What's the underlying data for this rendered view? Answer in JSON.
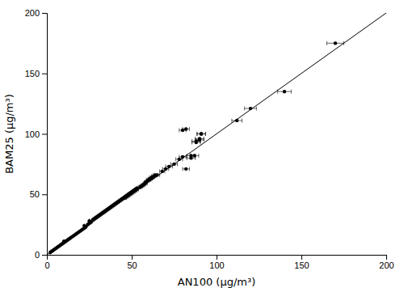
{
  "chart_data": {
    "type": "scatter",
    "xlabel": "AN100 (μg/m³)",
    "ylabel": "BAM25 (μg/m³)",
    "xlim": [
      0,
      200
    ],
    "ylim": [
      0,
      200
    ],
    "xticks": [
      0,
      50,
      100,
      150,
      200
    ],
    "yticks": [
      0,
      50,
      100,
      150,
      200
    ],
    "grid": false,
    "series": [
      {
        "type": "line",
        "x": [
          0,
          200
        ],
        "values": [
          0,
          200
        ],
        "color": "#000000",
        "line_style": "solid"
      },
      {
        "type": "scatter",
        "color": "#000000",
        "marker": "circle",
        "x": [
          2,
          3,
          4,
          5,
          6,
          7,
          8,
          9,
          10,
          10,
          11,
          12,
          13,
          14,
          15,
          16,
          17,
          18,
          19,
          20,
          21,
          22,
          22,
          23,
          24,
          25,
          25,
          26,
          27,
          28,
          29,
          30,
          31,
          32,
          33,
          34,
          35,
          36,
          37,
          38,
          39,
          40,
          41,
          42,
          43,
          44,
          45,
          46,
          47,
          48,
          49,
          50,
          51,
          52,
          53,
          55,
          56,
          57,
          58,
          59,
          60,
          61,
          62,
          63,
          46,
          47,
          48,
          49,
          50,
          51,
          52,
          53,
          55,
          56,
          57,
          58,
          60,
          61,
          62,
          63,
          64,
          65,
          68,
          70,
          72,
          75,
          78,
          80,
          82,
          85,
          87,
          88,
          90,
          91,
          80,
          82,
          85,
          88,
          90,
          91,
          112,
          120,
          140,
          170
        ],
        "values": [
          2,
          3,
          4,
          5,
          6,
          7,
          8,
          9,
          10,
          11,
          11,
          12,
          13,
          14,
          15,
          16,
          17,
          18,
          19,
          20,
          21,
          22,
          24,
          23,
          25,
          26,
          28,
          27,
          29,
          30,
          31,
          32,
          33,
          34,
          35,
          36,
          37,
          38,
          39,
          40,
          41,
          42,
          43,
          44,
          45,
          46,
          47,
          48,
          49,
          50,
          51,
          52,
          53,
          54,
          55,
          56,
          57,
          58,
          60,
          61,
          62,
          63,
          64,
          65,
          47,
          48,
          49,
          50,
          51,
          52,
          53,
          54,
          56,
          57,
          58,
          59,
          62,
          63,
          64,
          65,
          66,
          66,
          69,
          71,
          73,
          75,
          79,
          81,
          71,
          80,
          82,
          94,
          96,
          100,
          103,
          104,
          82,
          93,
          95,
          100,
          111,
          121,
          135,
          175
        ],
        "xerr": [
          0,
          0,
          0,
          0,
          0,
          0,
          0,
          0,
          0,
          0,
          0,
          0,
          0,
          0,
          0,
          0,
          0,
          0,
          0,
          0,
          0,
          0,
          0,
          0,
          0,
          0,
          0,
          0,
          0,
          0,
          0,
          0,
          0,
          0,
          0,
          0,
          0,
          0,
          0,
          0,
          0,
          0,
          0,
          0,
          0,
          0,
          0,
          0,
          0,
          0,
          0,
          0,
          0,
          0,
          0,
          0,
          0,
          0,
          0,
          0,
          0,
          0,
          0,
          0,
          1.0,
          1.0,
          1.0,
          1.0,
          1.0,
          1.0,
          1.0,
          1.0,
          1.2,
          1.2,
          1.2,
          1.2,
          1.3,
          1.3,
          1.3,
          1.3,
          1.3,
          1.5,
          1.5,
          1.8,
          2.0,
          2.0,
          2.0,
          2.0,
          2.0,
          2.5,
          2.5,
          2.5,
          2.5,
          2.5,
          2.0,
          2.0,
          2.5,
          2.5,
          2.5,
          2.5,
          3.0,
          3.5,
          4.0,
          5.0
        ]
      }
    ]
  }
}
